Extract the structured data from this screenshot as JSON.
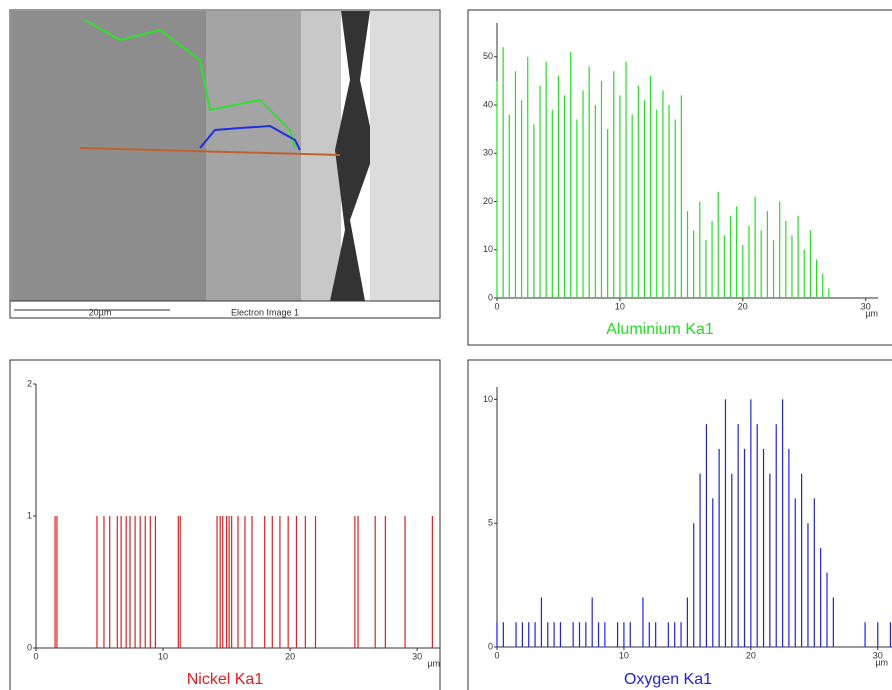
{
  "image": {
    "scale_bar": "20µm",
    "caption": "Electron Image 1"
  },
  "chart_data": [
    {
      "type": "bar",
      "title": "Aluminium Ka1",
      "color": "#22e022",
      "x_label": "µm",
      "x": [
        0,
        0.5,
        1,
        1.5,
        2,
        2.5,
        3,
        3.5,
        4,
        4.5,
        5,
        5.5,
        6,
        6.5,
        7,
        7.5,
        8,
        8.5,
        9,
        9.5,
        10,
        10.5,
        11,
        11.5,
        12,
        12.5,
        13,
        13.5,
        14,
        14.5,
        15,
        15.5,
        16,
        16.5,
        17,
        17.5,
        18,
        18.5,
        19,
        19.5,
        20,
        20.5,
        21,
        21.5,
        22,
        22.5,
        23,
        23.5,
        24,
        24.5,
        25,
        25.5,
        26,
        26.5,
        27
      ],
      "values": [
        45,
        52,
        38,
        47,
        41,
        50,
        36,
        44,
        49,
        39,
        46,
        42,
        51,
        37,
        43,
        48,
        40,
        45,
        35,
        47,
        42,
        49,
        38,
        44,
        41,
        46,
        39,
        43,
        40,
        37,
        42,
        18,
        14,
        20,
        12,
        16,
        22,
        13,
        17,
        19,
        11,
        15,
        21,
        14,
        18,
        12,
        20,
        16,
        13,
        17,
        10,
        14,
        8,
        5,
        2
      ],
      "xlim": [
        0,
        31
      ],
      "ylim": [
        0,
        57
      ],
      "xticks": [
        0,
        10,
        20,
        30
      ],
      "yticks": [
        0,
        10,
        20,
        30,
        40,
        50
      ]
    },
    {
      "type": "bar",
      "title": "Nickel Ka1",
      "color": "#e02020",
      "x_label": "µm",
      "x": [
        1.5,
        1.65,
        4.8,
        5.35,
        5.8,
        6.4,
        6.7,
        7.1,
        7.4,
        7.8,
        8.2,
        8.6,
        9.0,
        9.4,
        11.2,
        11.35,
        14.25,
        14.5,
        14.7,
        15.0,
        15.2,
        15.4,
        15.9,
        16.45,
        17.0,
        18.0,
        18.6,
        19.2,
        19.85,
        20.5,
        21.2,
        22.0,
        25.1,
        25.35,
        26.7,
        27.5,
        29.05,
        31.2
      ],
      "values": [
        1,
        1,
        1,
        1,
        1,
        1,
        1,
        1,
        1,
        1,
        1,
        1,
        1,
        1,
        1,
        1,
        1,
        1,
        1,
        1,
        1,
        1,
        1,
        1,
        1,
        1,
        1,
        1,
        1,
        1,
        1,
        1,
        1,
        1,
        1,
        1,
        1,
        1
      ],
      "xlim": [
        0,
        31.8
      ],
      "ylim": [
        0,
        2
      ],
      "xticks": [
        0,
        10,
        20,
        30
      ],
      "yticks": [
        0,
        1,
        2
      ]
    },
    {
      "type": "bar",
      "title": "Oxygen Ka1",
      "color": "#2020e0",
      "x_label": "µm",
      "x": [
        0,
        0.5,
        1,
        1.5,
        2,
        2.5,
        3,
        3.5,
        4,
        4.5,
        5,
        5.5,
        6,
        6.5,
        7,
        7.5,
        8,
        8.5,
        9,
        9.5,
        10,
        10.5,
        11,
        11.5,
        12,
        12.5,
        13,
        13.5,
        14,
        14.5,
        15,
        15.5,
        16,
        16.5,
        17,
        17.5,
        18,
        18.5,
        19,
        19.5,
        20,
        20.5,
        21,
        21.5,
        22,
        22.5,
        23,
        23.5,
        24,
        24.5,
        25,
        25.5,
        26,
        26.5,
        27,
        27.5,
        28,
        28.5,
        29,
        29.5,
        30,
        30.5,
        31
      ],
      "values": [
        1,
        1,
        0,
        1,
        1,
        1,
        1,
        2,
        1,
        1,
        1,
        0,
        1,
        1,
        1,
        2,
        1,
        1,
        0,
        1,
        1,
        1,
        0,
        2,
        1,
        1,
        0,
        1,
        1,
        1,
        2,
        5,
        7,
        9,
        6,
        8,
        10,
        7,
        9,
        8,
        10,
        9,
        8,
        7,
        9,
        10,
        8,
        6,
        7,
        5,
        6,
        4,
        3,
        2,
        0,
        0,
        0,
        0,
        1,
        0,
        1,
        0,
        1
      ],
      "xlim": [
        0,
        31.2
      ],
      "ylim": [
        0,
        10.5
      ],
      "xticks": [
        0,
        10,
        20,
        30
      ],
      "yticks": [
        0,
        5,
        10
      ]
    }
  ]
}
